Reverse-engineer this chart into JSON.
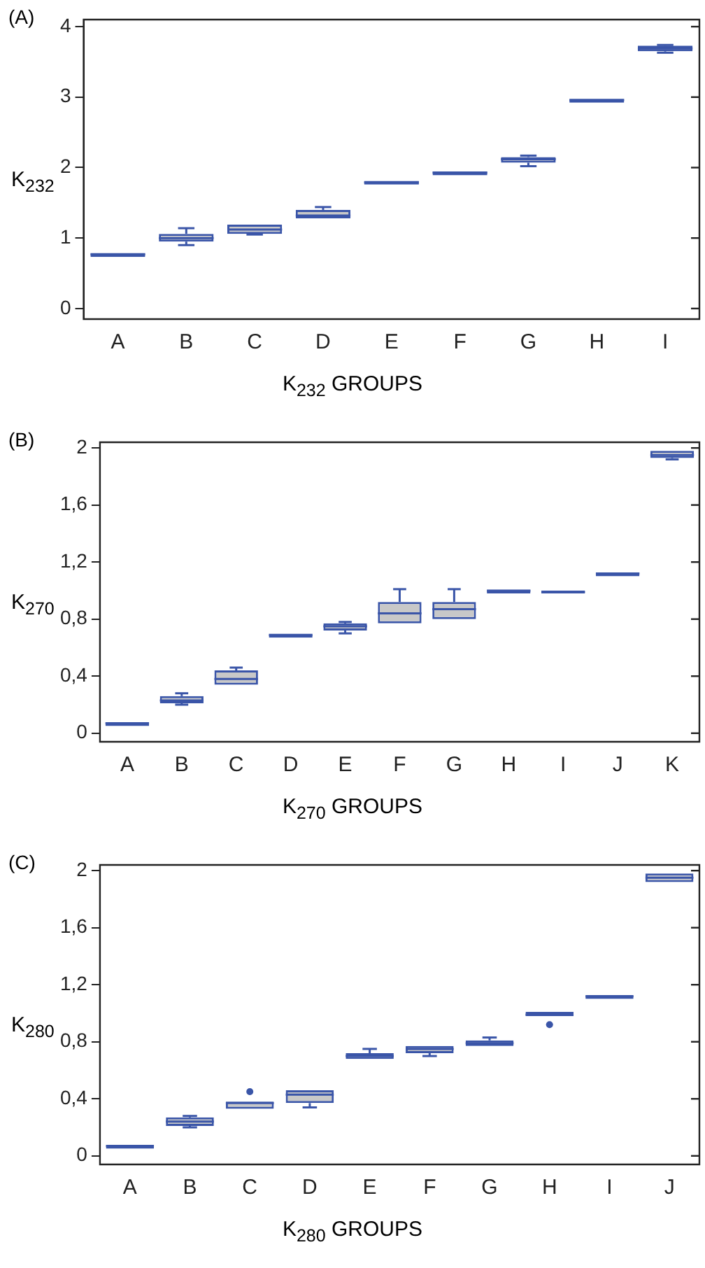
{
  "chart_data": [
    {
      "type": "box",
      "title": "(A)",
      "ylabel": "K$_{232}$",
      "xlabel": "K$_{232}$ GROUPS",
      "color": "#3a55a8",
      "categories": [
        "A",
        "B",
        "C",
        "D",
        "E",
        "F",
        "G",
        "H",
        "I"
      ],
      "boxes": [
        {
          "low": 0.77,
          "q1": 0.77,
          "median": 0.77,
          "q3": 0.77,
          "high": 0.77
        },
        {
          "low": 0.9,
          "q1": 0.95,
          "median": 1.0,
          "q3": 1.06,
          "high": 1.14
        },
        {
          "low": 1.05,
          "q1": 1.06,
          "median": 1.12,
          "q3": 1.19,
          "high": 1.19
        },
        {
          "low": 1.28,
          "q1": 1.28,
          "median": 1.32,
          "q3": 1.4,
          "high": 1.44
        },
        {
          "low": 1.76,
          "q1": 1.76,
          "median": 1.79,
          "q3": 1.81,
          "high": 1.81
        },
        {
          "low": 1.93,
          "q1": 1.93,
          "median": 1.93,
          "q3": 1.93,
          "high": 1.93
        },
        {
          "low": 2.02,
          "q1": 2.07,
          "median": 2.12,
          "q3": 2.15,
          "high": 2.17
        },
        {
          "low": 2.96,
          "q1": 2.96,
          "median": 2.96,
          "q3": 2.96,
          "high": 2.96
        },
        {
          "low": 3.63,
          "q1": 3.65,
          "median": 3.69,
          "q3": 3.73,
          "high": 3.74
        }
      ],
      "ylim": [
        -0.15,
        4.1
      ],
      "yticks": [
        0,
        1,
        2,
        3,
        4
      ]
    },
    {
      "type": "box",
      "title": "(B)",
      "ylabel": "K$_{270}$",
      "xlabel": "K$_{270}$ GROUPS",
      "color": "#3a55a8",
      "categories": [
        "A",
        "B",
        "C",
        "D",
        "E",
        "F",
        "G",
        "H",
        "I",
        "J",
        "K"
      ],
      "boxes": [
        {
          "low": 0.07,
          "q1": 0.07,
          "median": 0.07,
          "q3": 0.07,
          "high": 0.07
        },
        {
          "low": 0.2,
          "q1": 0.21,
          "median": 0.23,
          "q3": 0.26,
          "high": 0.28
        },
        {
          "low": 0.34,
          "q1": 0.34,
          "median": 0.38,
          "q3": 0.44,
          "high": 0.46
        },
        {
          "low": 0.69,
          "q1": 0.69,
          "median": 0.69,
          "q3": 0.69,
          "high": 0.69
        },
        {
          "low": 0.7,
          "q1": 0.72,
          "median": 0.75,
          "q3": 0.77,
          "high": 0.78
        },
        {
          "low": 0.77,
          "q1": 0.77,
          "median": 0.84,
          "q3": 0.92,
          "high": 1.01
        },
        {
          "low": 0.8,
          "q1": 0.8,
          "median": 0.87,
          "q3": 0.92,
          "high": 1.01
        },
        {
          "low": 1.0,
          "q1": 1.0,
          "median": 1.0,
          "q3": 1.0,
          "high": 1.0
        },
        {
          "low": 0.98,
          "q1": 0.98,
          "median": 0.99,
          "q3": 1.0,
          "high": 1.0
        },
        {
          "low": 1.12,
          "q1": 1.12,
          "median": 1.12,
          "q3": 1.12,
          "high": 1.12
        },
        {
          "low": 1.92,
          "q1": 1.93,
          "median": 1.95,
          "q3": 1.98,
          "high": 1.98
        }
      ],
      "ylim": [
        -0.06,
        2.04
      ],
      "yticks": [
        0,
        {
          "value": 0.4,
          "label": "0,4"
        },
        {
          "value": 0.8,
          "label": "0,8"
        },
        {
          "value": 1.2,
          "label": "1,2"
        },
        {
          "value": 1.6,
          "label": "1,6"
        },
        2
      ]
    },
    {
      "type": "box",
      "title": "(C)",
      "ylabel": "K$_{280}$",
      "xlabel": "K$_{280}$ GROUPS",
      "color": "#3a55a8",
      "categories": [
        "A",
        "B",
        "C",
        "D",
        "E",
        "F",
        "G",
        "H",
        "I",
        "J"
      ],
      "boxes": [
        {
          "low": 0.07,
          "q1": 0.07,
          "median": 0.07,
          "q3": 0.07,
          "high": 0.07
        },
        {
          "low": 0.2,
          "q1": 0.21,
          "median": 0.24,
          "q3": 0.27,
          "high": 0.28
        },
        {
          "low": 0.33,
          "q1": 0.33,
          "median": 0.37,
          "q3": 0.38,
          "high": 0.38,
          "outliers": [
            0.45
          ]
        },
        {
          "low": 0.34,
          "q1": 0.37,
          "median": 0.43,
          "q3": 0.46,
          "high": 0.46
        },
        {
          "low": 0.68,
          "q1": 0.68,
          "median": 0.7,
          "q3": 0.72,
          "high": 0.75
        },
        {
          "low": 0.7,
          "q1": 0.72,
          "median": 0.75,
          "q3": 0.77,
          "high": 0.77
        },
        {
          "low": 0.77,
          "q1": 0.77,
          "median": 0.79,
          "q3": 0.81,
          "high": 0.83
        },
        {
          "low": 0.98,
          "q1": 0.98,
          "median": 0.99,
          "q3": 1.01,
          "high": 1.01,
          "outliers": [
            0.92
          ]
        },
        {
          "low": 1.12,
          "q1": 1.12,
          "median": 1.12,
          "q3": 1.12,
          "high": 1.12
        },
        {
          "low": 1.92,
          "q1": 1.92,
          "median": 1.95,
          "q3": 1.98,
          "high": 1.98
        }
      ],
      "ylim": [
        -0.06,
        2.04
      ],
      "yticks": [
        0,
        {
          "value": 0.4,
          "label": "0,4"
        },
        {
          "value": 0.8,
          "label": "0,8"
        },
        {
          "value": 1.2,
          "label": "1,2"
        },
        {
          "value": 1.6,
          "label": "1,6"
        },
        2
      ]
    }
  ]
}
